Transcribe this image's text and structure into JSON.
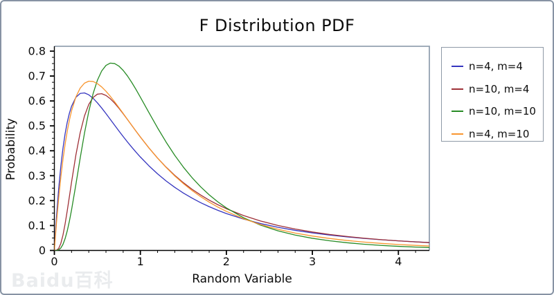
{
  "title": "F Distribution PDF",
  "axes": {
    "x_label": "Random Variable",
    "y_label": "Probability",
    "x_ticks": [
      "0",
      "1",
      "2",
      "3",
      "4"
    ],
    "y_ticks": [
      "0",
      "0.1",
      "0.2",
      "0.3",
      "0.4",
      "0.5",
      "0.6",
      "0.7",
      "0.8"
    ]
  },
  "legend": {
    "position": "outside-right",
    "items": [
      {
        "label": "n=4, m=4",
        "color": "#3434bf"
      },
      {
        "label": "n=10, m=4",
        "color": "#9e2f36"
      },
      {
        "label": "n=10, m=10",
        "color": "#268b24"
      },
      {
        "label": "n=4, m=10",
        "color": "#f8952e"
      }
    ]
  },
  "watermark": "Baidu百科",
  "chart_data": {
    "type": "line",
    "title": "F Distribution PDF",
    "xlabel": "Random Variable",
    "ylabel": "Probability",
    "xlim": [
      0,
      4.36
    ],
    "ylim": [
      0,
      0.8194
    ],
    "grid": false,
    "legend_position": "outside-right",
    "x_major_ticks": [
      0,
      1,
      2,
      3,
      4
    ],
    "x_minor_step": 0.2,
    "y_major_ticks": [
      0,
      0.1,
      0.2,
      0.3,
      0.4,
      0.5,
      0.6,
      0.7,
      0.8
    ],
    "y_minor_step": 0.025,
    "x": [
      0,
      0.025,
      0.05,
      0.075,
      0.1,
      0.125,
      0.15,
      0.175,
      0.2,
      0.25,
      0.3,
      0.35,
      0.4,
      0.45,
      0.5,
      0.55,
      0.6,
      0.65,
      0.7,
      0.75,
      0.8,
      0.85,
      0.9,
      0.95,
      1,
      1.1,
      1.2,
      1.3,
      1.4,
      1.5,
      1.6,
      1.7,
      1.8,
      1.9,
      2,
      2.2,
      2.4,
      2.6,
      2.8,
      3,
      3.2,
      3.4,
      3.6,
      3.8,
      4,
      4.2,
      4.4
    ],
    "series": [
      {
        "name": "n=4, m=4",
        "color": "#3434bf",
        "peak": {
          "x": 0.333,
          "y": 0.633
        },
        "values": [
          0,
          0.1359,
          0.2468,
          0.337,
          0.4098,
          0.4682,
          0.5146,
          0.5509,
          0.5787,
          0.6144,
          0.6302,
          0.6322,
          0.6247,
          0.6108,
          0.5926,
          0.5717,
          0.5493,
          0.5262,
          0.5029,
          0.4798,
          0.4572,
          0.4354,
          0.4144,
          0.3942,
          0.375,
          0.3394,
          0.3074,
          0.2787,
          0.2532,
          0.2304,
          0.2101,
          0.1919,
          0.1757,
          0.1612,
          0.1481,
          0.1259,
          0.1078,
          0.0929,
          0.0806,
          0.0703,
          0.0617,
          0.0544,
          0.0482,
          0.043,
          0.0384,
          0.0345,
          0.031
        ]
      },
      {
        "name": "n=10, m=4",
        "color": "#9e2f36",
        "peak": {
          "x": 0.533,
          "y": 0.629
        },
        "values": [
          0,
          0.0007,
          0.008,
          0.0278,
          0.0614,
          0.1066,
          0.1596,
          0.2166,
          0.2744,
          0.3825,
          0.4721,
          0.5396,
          0.5859,
          0.6139,
          0.6272,
          0.629,
          0.6221,
          0.6089,
          0.5914,
          0.571,
          0.5487,
          0.5255,
          0.5019,
          0.4784,
          0.4553,
          0.4113,
          0.3708,
          0.3341,
          0.3012,
          0.2719,
          0.2458,
          0.2226,
          0.202,
          0.1837,
          0.1675,
          0.14,
          0.118,
          0.1003,
          0.0859,
          0.074,
          0.0642,
          0.0561,
          0.0492,
          0.0434,
          0.0385,
          0.0343,
          0.0306
        ]
      },
      {
        "name": "n=10, m=10",
        "color": "#268b24",
        "peak": {
          "x": 0.667,
          "y": 0.752
        },
        "values": [
          0,
          0.0002,
          0.0024,
          0.0097,
          0.0243,
          0.0474,
          0.0788,
          0.1178,
          0.1628,
          0.2642,
          0.3702,
          0.4702,
          0.5576,
          0.6288,
          0.6828,
          0.7202,
          0.7426,
          0.7519,
          0.7503,
          0.74,
          0.7227,
          0.7003,
          0.6742,
          0.6455,
          0.6152,
          0.553,
          0.4919,
          0.4344,
          0.3817,
          0.3344,
          0.2925,
          0.2556,
          0.2233,
          0.1952,
          0.1707,
          0.1311,
          0.1013,
          0.0787,
          0.0617,
          0.0487,
          0.0387,
          0.031,
          0.0249,
          0.0202,
          0.0165,
          0.0136,
          0.0112
        ]
      },
      {
        "name": "n=4, m=10",
        "color": "#f8952e",
        "peak": {
          "x": 0.417,
          "y": 0.68
        },
        "values": [
          0,
          0.1119,
          0.2089,
          0.2927,
          0.3648,
          0.4264,
          0.4789,
          0.5231,
          0.5602,
          0.6158,
          0.6514,
          0.6714,
          0.6793,
          0.6781,
          0.6698,
          0.6563,
          0.6389,
          0.6188,
          0.5969,
          0.5737,
          0.55,
          0.5259,
          0.502,
          0.4784,
          0.4554,
          0.4112,
          0.3703,
          0.3329,
          0.2989,
          0.2682,
          0.2407,
          0.216,
          0.194,
          0.1743,
          0.1568,
          0.1272,
          0.1037,
          0.0849,
          0.0698,
          0.0577,
          0.048,
          0.04,
          0.0336,
          0.0283,
          0.0239,
          0.0203,
          0.0173
        ]
      }
    ]
  }
}
